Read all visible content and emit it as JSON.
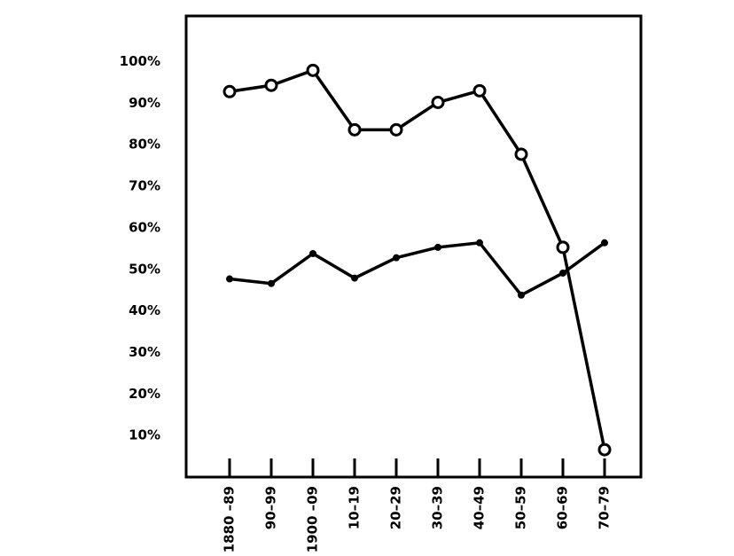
{
  "chart_data": {
    "type": "line",
    "categories": [
      "1880 –89",
      "90–99",
      "1900 –09",
      "10–19",
      "20–29",
      "30–39",
      "40–49",
      "50–59",
      "60–69",
      "70–79"
    ],
    "series": [
      {
        "marker": "open-circle",
        "color": "#000000",
        "values": [
          92.8,
          94.3,
          97.9,
          83.6,
          83.6,
          90.2,
          93,
          77.7,
          55.3,
          6.6
        ]
      },
      {
        "marker": "dot",
        "color": "#000000",
        "values": [
          47.7,
          46.6,
          53.8,
          47.9,
          52.8,
          55.3,
          56.4,
          43.8,
          49.1,
          56.4
        ]
      }
    ],
    "ylim": [
      0,
      111
    ],
    "yticks": [
      {
        "value": 10,
        "label": "10%"
      },
      {
        "value": 20,
        "label": "20%"
      },
      {
        "value": 30,
        "label": "30%"
      },
      {
        "value": 40,
        "label": "40%"
      },
      {
        "value": 50,
        "label": "50%"
      },
      {
        "value": 60,
        "label": "60%"
      },
      {
        "value": 70,
        "label": "70%"
      },
      {
        "value": 80,
        "label": "80%"
      },
      {
        "value": 90,
        "label": "90%"
      },
      {
        "value": 100,
        "label": "100%"
      }
    ],
    "grid": false
  }
}
